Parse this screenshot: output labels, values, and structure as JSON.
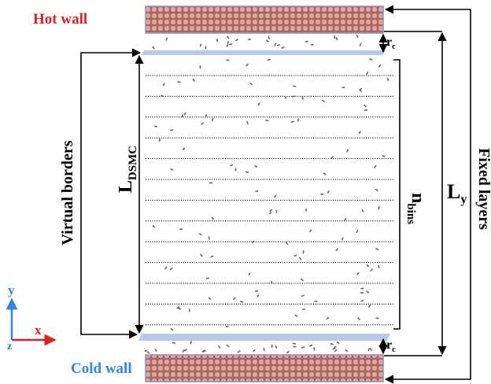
{
  "hot_wall": "Hot wall",
  "cold_wall": "Cold wall",
  "virtual_borders": "Virtual borders",
  "fixed_layers": "Fixed layers",
  "l_dsmc": {
    "main": "L",
    "sub": "DSMC"
  },
  "n_bins": {
    "main": "n",
    "sub": "bins"
  },
  "l_y": {
    "main": "L",
    "sub": "y"
  },
  "r_c_top": {
    "main": "r",
    "sub": "c"
  },
  "r_c_bottom": {
    "main": "r",
    "sub": "c"
  },
  "axes": {
    "y": "y",
    "x": "x",
    "z": "z"
  }
}
